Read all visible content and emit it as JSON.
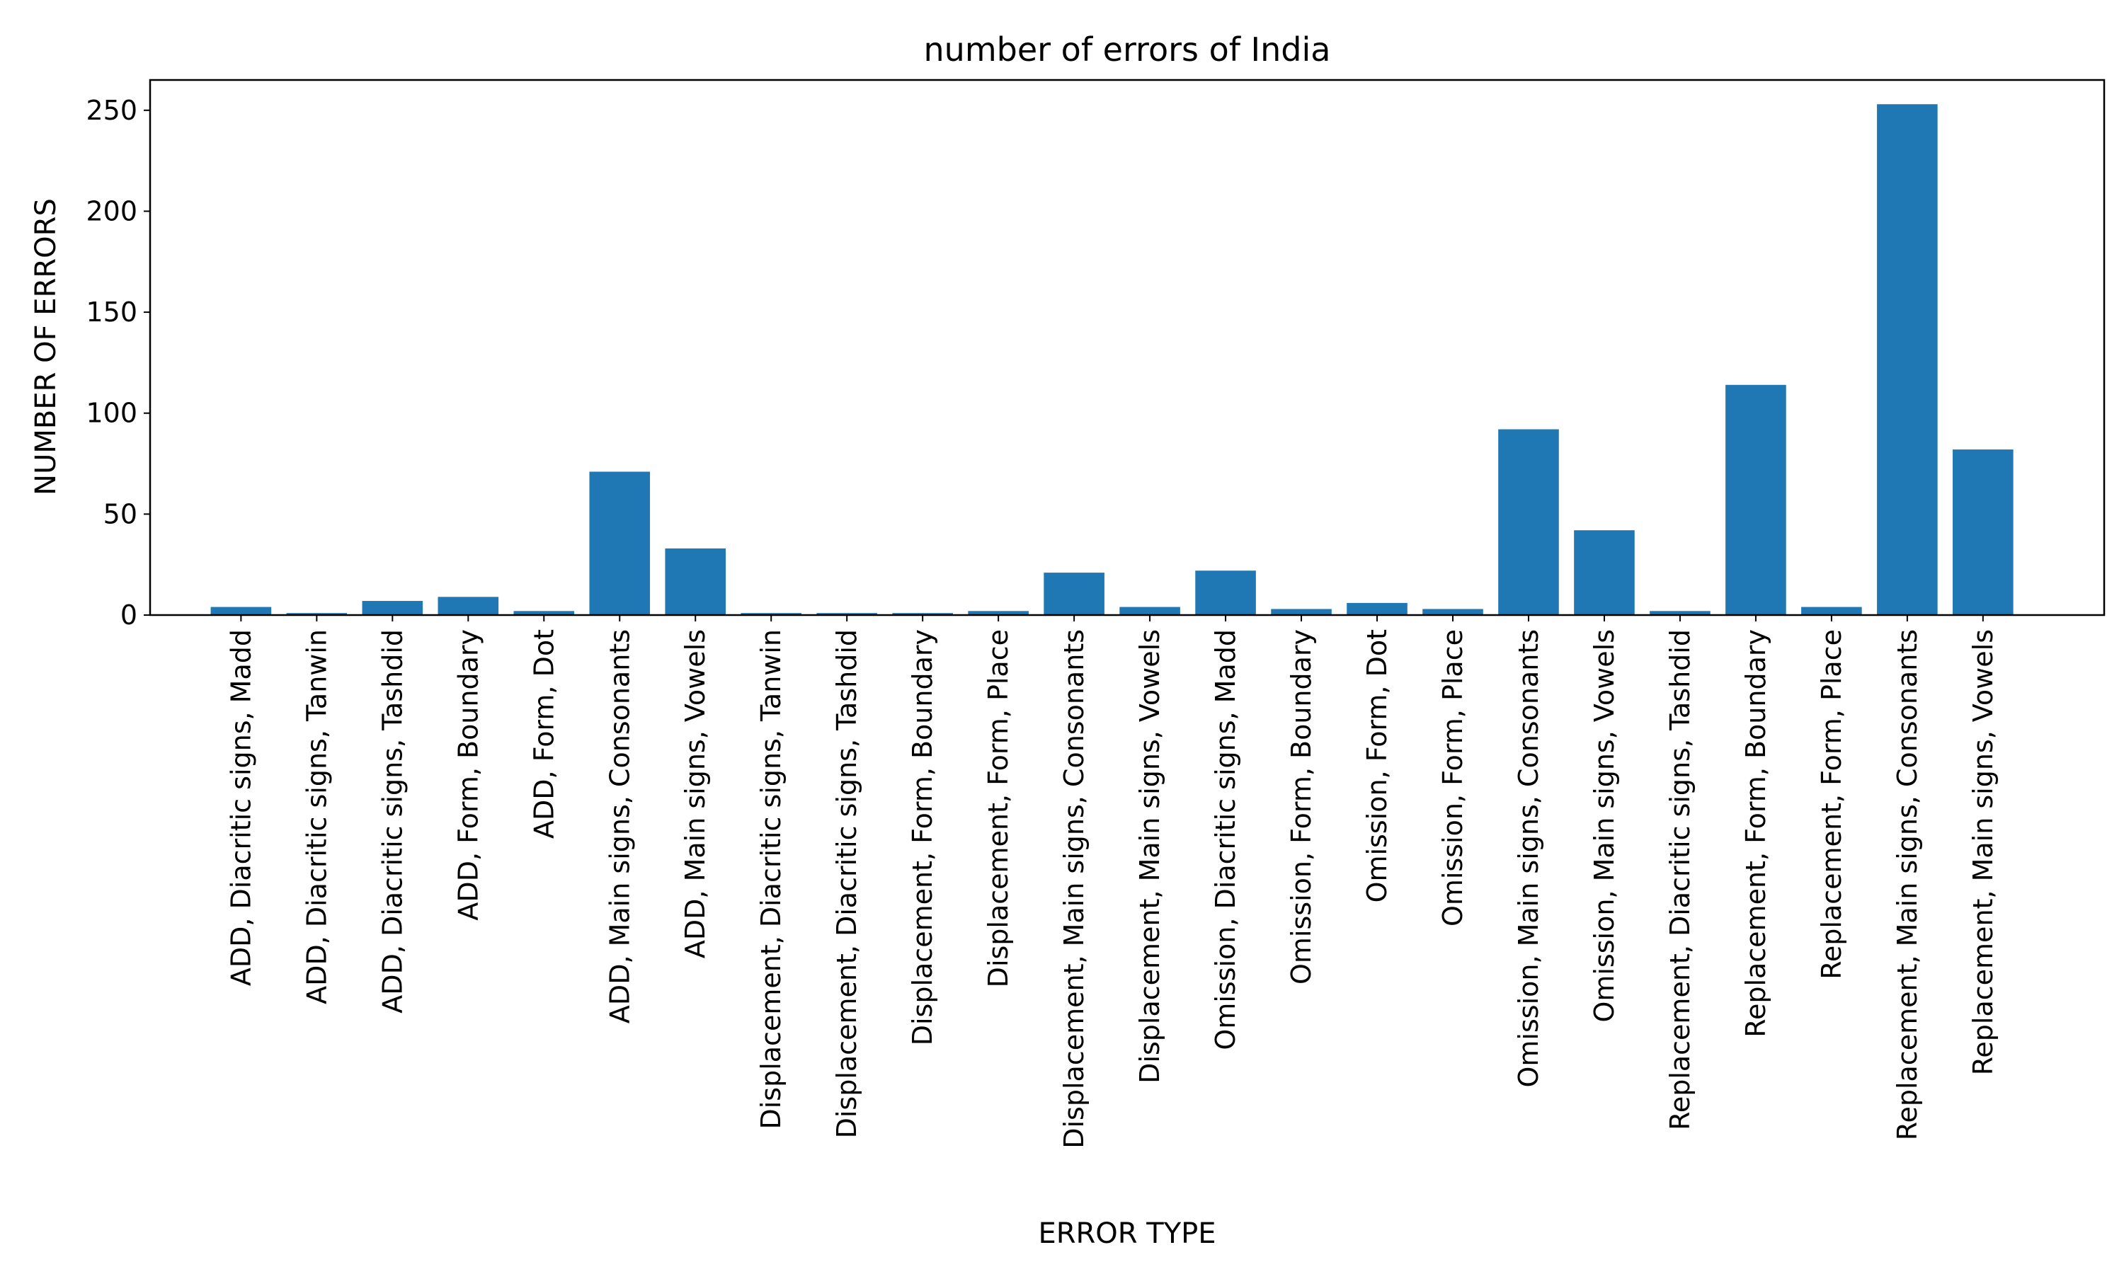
{
  "chart_data": {
    "type": "bar",
    "title": "number of errors of India",
    "xlabel": "ERROR TYPE",
    "ylabel": "NUMBER OF ERRORS",
    "ylim": [
      0,
      265
    ],
    "yticks": [
      0,
      50,
      100,
      150,
      200,
      250
    ],
    "grid": false,
    "bar_color": "#1f77b4",
    "categories": [
      "ADD, Diacritic signs, Madd",
      "ADD, Diacritic signs, Tanwin",
      "ADD, Diacritic signs, Tashdid",
      "ADD, Form, Boundary",
      "ADD, Form, Dot",
      "ADD, Main signs, Consonants",
      "ADD, Main signs, Vowels",
      "Displacement, Diacritic signs, Tanwin",
      "Displacement, Diacritic signs, Tashdid",
      "Displacement, Form, Boundary",
      "Displacement, Form, Place",
      "Displacement, Main signs, Consonants",
      "Displacement, Main signs, Vowels",
      "Omission, Diacritic signs, Madd",
      "Omission, Form, Boundary",
      "Omission, Form, Dot",
      "Omission, Form, Place",
      "Omission, Main signs, Consonants",
      "Omission, Main signs, Vowels",
      "Replacement, Diacritic signs, Tashdid",
      "Replacement, Form, Boundary",
      "Replacement, Form, Place",
      "Replacement, Main signs, Consonants",
      "Replacement, Main signs, Vowels"
    ],
    "values": [
      4,
      1,
      7,
      9,
      2,
      71,
      33,
      1,
      1,
      1,
      2,
      21,
      4,
      22,
      3,
      6,
      3,
      92,
      42,
      2,
      114,
      4,
      253,
      82
    ]
  }
}
